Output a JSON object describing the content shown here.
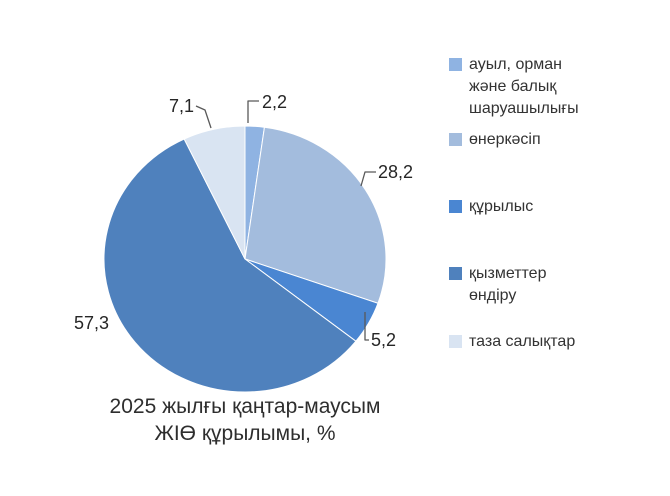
{
  "page": {
    "background": "#ffffff"
  },
  "chart_data": {
    "type": "pie",
    "title": "2025 жылғы қаңтар-маусым ЖІӨ құрылымы, %",
    "title_lines": [
      "2025 жылғы қаңтар-маусым",
      "ЖІӨ құрылымы, %"
    ],
    "categories": [
      "ауыл, орман және балық шаруашылығы",
      "өнеркәсіп",
      "құрылыс",
      "қызметтер өндіру",
      "таза салықтар"
    ],
    "values": [
      2.2,
      28.2,
      5.2,
      57.3,
      7.1
    ],
    "value_labels": [
      "2,2",
      "28,2",
      "5,2",
      "57,3",
      "7,1"
    ],
    "colors": [
      "#8fb3e2",
      "#a3bcdd",
      "#4a86d2",
      "#4f81bd",
      "#d9e4f2"
    ],
    "start_angle_deg": 0,
    "direction": "clockwise",
    "legend_position": "right",
    "slice_border_color": "#ffffff",
    "leader_line_color": "#595959",
    "label_color": "#262626"
  }
}
